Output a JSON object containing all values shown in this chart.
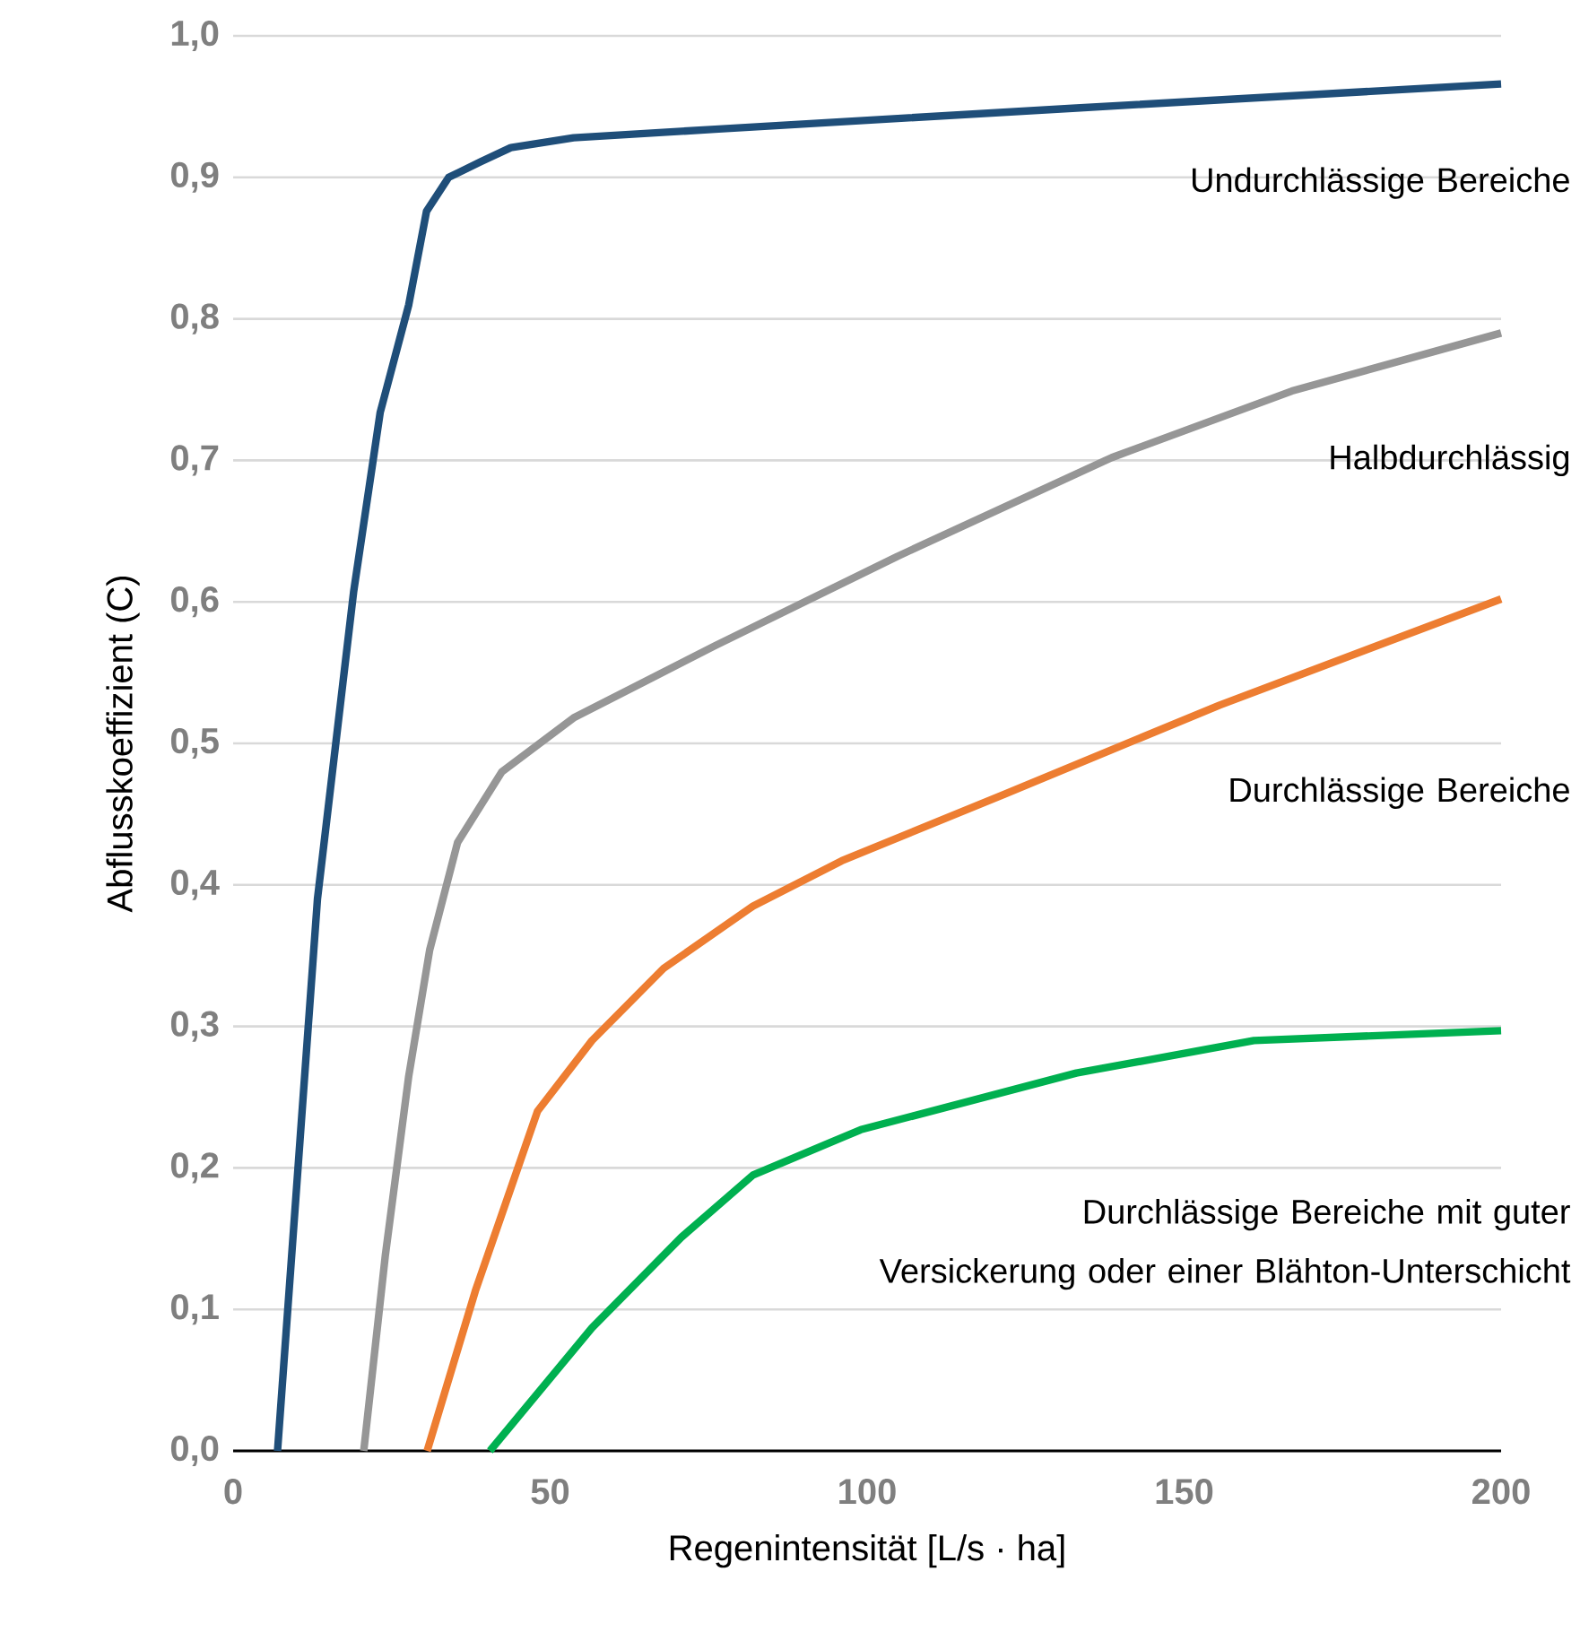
{
  "chart_data": {
    "type": "line",
    "xlabel": "Regenintensität [L/s · ha]",
    "ylabel": "Abflusskoeffizient (C)",
    "xlim": [
      0,
      200
    ],
    "xticks": [
      0,
      50,
      100,
      150,
      200
    ],
    "ylim": [
      0,
      1
    ],
    "yticks": [
      {
        "value": 0,
        "label": "0,0"
      },
      {
        "value": 0.1,
        "label": "0,1"
      },
      {
        "value": 0.2,
        "label": "0,2"
      },
      {
        "value": 0.3,
        "label": "0,3"
      },
      {
        "value": 0.4,
        "label": "0,4"
      },
      {
        "value": 0.5,
        "label": "0,5"
      },
      {
        "value": 0.6,
        "label": "0,6"
      },
      {
        "value": 0.7,
        "label": "0,7"
      },
      {
        "value": 0.8,
        "label": "0,8"
      },
      {
        "value": 0.9,
        "label": "0,9"
      },
      {
        "value": 1,
        "label": "1,0"
      }
    ],
    "grid": "y",
    "legend": false,
    "marker": "none",
    "line_style": "solid",
    "series": [
      {
        "name": "Undurchlässige Bereiche",
        "color": "#1f4e79",
        "x": [
          7,
          13.3,
          19,
          23.2,
          27.7,
          30.5,
          34,
          39,
          43.8,
          53.7,
          76,
          133,
          200
        ],
        "values": [
          0,
          0.39,
          0.607,
          0.734,
          0.81,
          0.876,
          0.9,
          0.911,
          0.921,
          0.928,
          0.934,
          0.949,
          0.966
        ]
      },
      {
        "name": "Halbdurchlässig",
        "color": "#969696",
        "x": [
          20.6,
          24,
          27.7,
          31,
          35.4,
          42.4,
          53.7,
          76,
          104.7,
          138.6,
          167,
          200
        ],
        "values": [
          0,
          0.138,
          0.265,
          0.354,
          0.43,
          0.48,
          0.518,
          0.569,
          0.632,
          0.702,
          0.749,
          0.79
        ]
      },
      {
        "name": "Durchlässige Bereiche",
        "color": "#ed7d31",
        "x": [
          30.6,
          38.2,
          48,
          56.6,
          67.9,
          82,
          96,
          121.6,
          155.6,
          200
        ],
        "values": [
          0,
          0.113,
          0.24,
          0.29,
          0.341,
          0.385,
          0.417,
          0.464,
          0.527,
          0.602
        ]
      },
      {
        "name": "Durchlässige Bereiche mit guter Versickerung oder einer Blähton-Unterschicht",
        "color": "#00b050",
        "x": [
          40.5,
          56.6,
          70.7,
          82,
          99,
          133,
          161,
          200
        ],
        "values": [
          0,
          0.087,
          0.151,
          0.195,
          0.227,
          0.267,
          0.29,
          0.297
        ]
      }
    ]
  }
}
